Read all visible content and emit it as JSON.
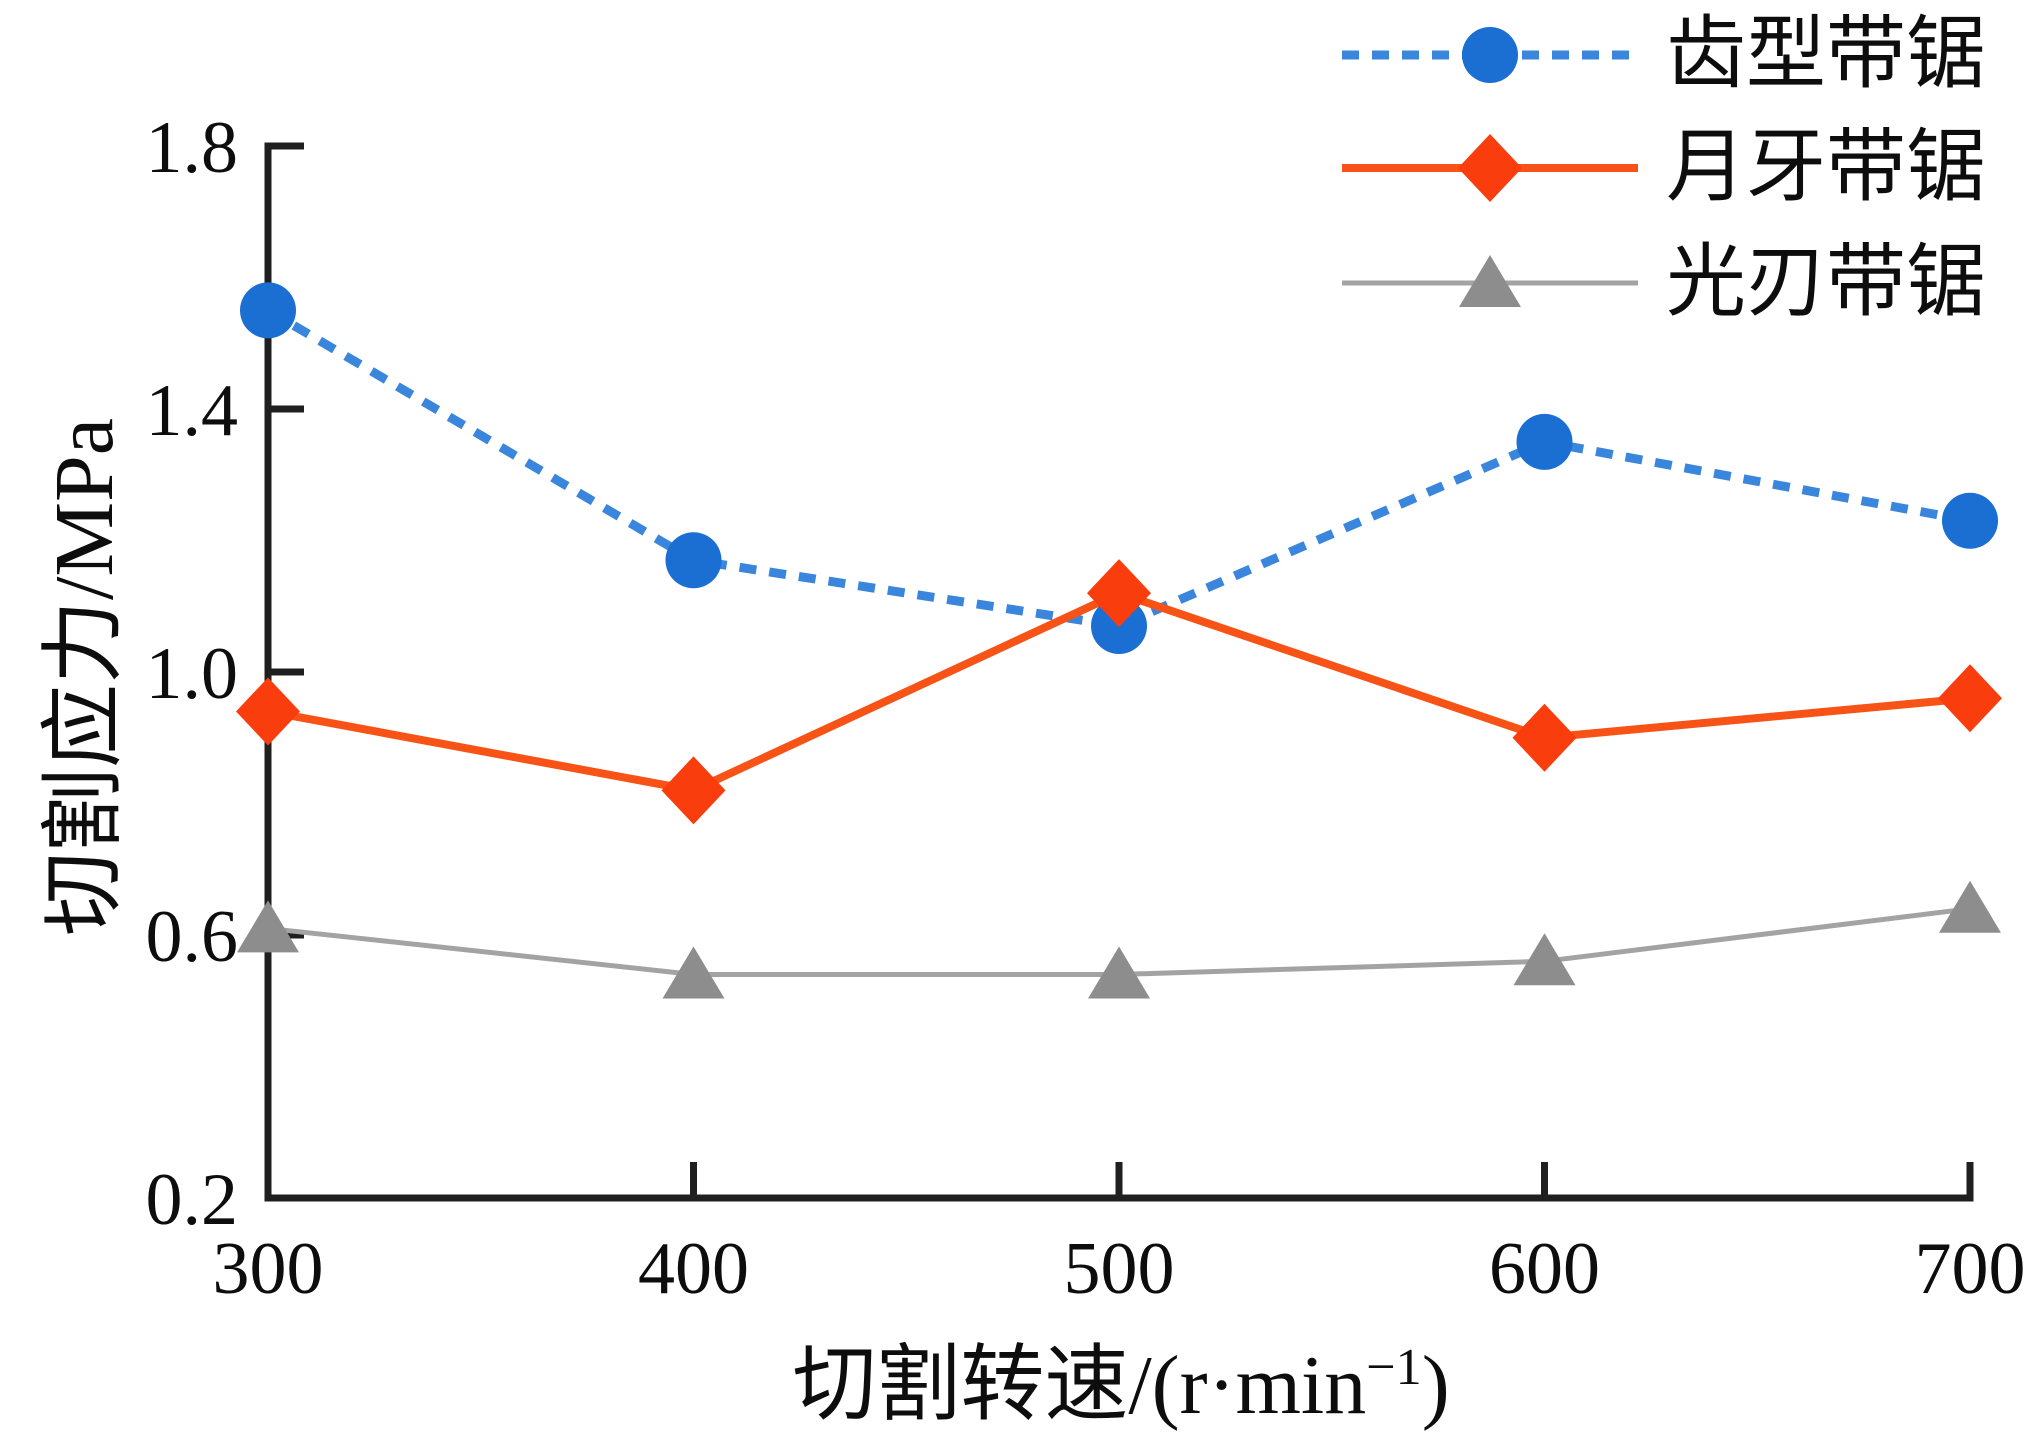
{
  "chart_data": {
    "type": "line",
    "title": "",
    "xlabel": "切割转速/(r·min⁻¹)",
    "xlabel_parts": [
      "切割转速/(r·min",
      "−1",
      ")"
    ],
    "ylabel": "切割应力/MPa",
    "x": [
      300,
      400,
      500,
      600,
      700
    ],
    "xticks": [
      300,
      400,
      500,
      600,
      700
    ],
    "yticks": [
      1.8,
      1.4,
      1.0,
      0.6,
      0.2
    ],
    "xlim": [
      300,
      700
    ],
    "ylim": [
      0.2,
      1.8
    ],
    "grid": false,
    "legend_position": "top-right",
    "axis_color": "#1f1f1f",
    "series": [
      {
        "name": "齿型带锯",
        "values": [
          1.55,
          1.17,
          1.07,
          1.35,
          1.23
        ],
        "marker": "circle",
        "marker_color": "#1b6ed2",
        "line_color": "#3a86dd",
        "line_style": "dashed"
      },
      {
        "name": "月牙带锯",
        "values": [
          0.94,
          0.82,
          1.12,
          0.9,
          0.96
        ],
        "marker": "diamond",
        "marker_color": "#f93d0d",
        "line_color": "#f85316",
        "line_style": "solid"
      },
      {
        "name": "光刃带锯",
        "values": [
          0.61,
          0.54,
          0.54,
          0.56,
          0.64
        ],
        "marker": "triangle",
        "marker_color": "#8d8d8d",
        "line_color": "#a3a3a3",
        "line_style": "solid"
      }
    ]
  }
}
